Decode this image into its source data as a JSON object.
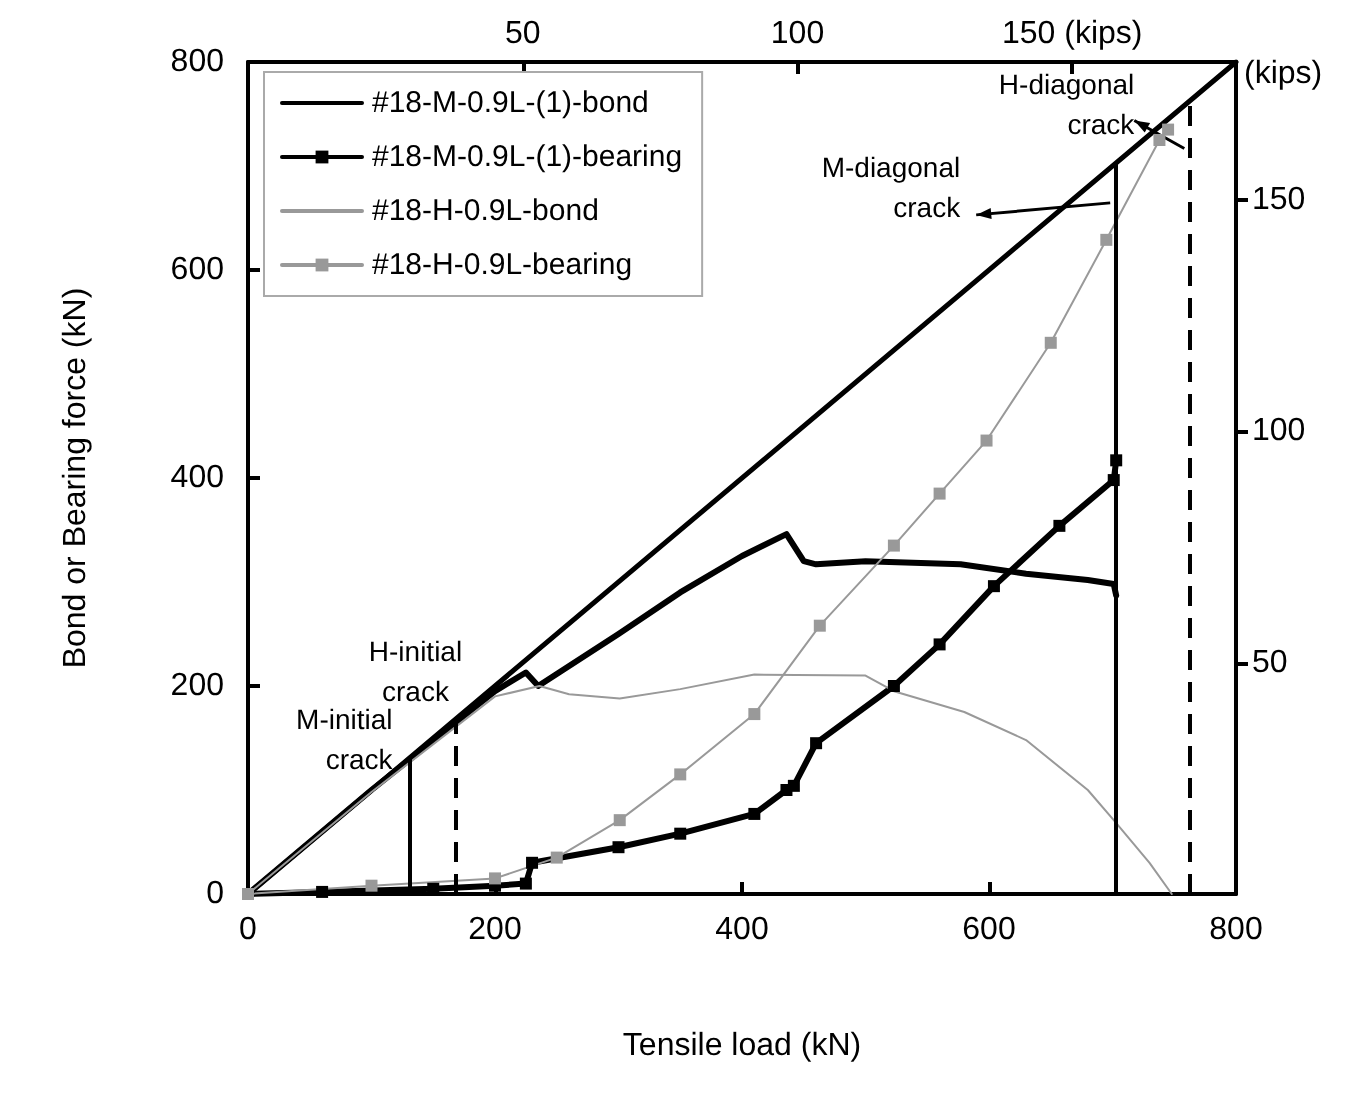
{
  "chart_data": {
    "type": "line",
    "xlabel": "Tensile load (kN)",
    "ylabel": "Bond or Bearing force (kN)",
    "y2label": "(kips)",
    "xlim": [
      0,
      800
    ],
    "xticks": [
      0,
      200,
      400,
      600,
      800
    ],
    "ylim": [
      0,
      800
    ],
    "yticks": [
      0,
      200,
      400,
      600,
      800
    ],
    "x2lim": [
      0,
      179.8
    ],
    "x2ticks": [
      50,
      100,
      {
        "value": 150,
        "label": "150 (kips)"
      }
    ],
    "y2lim": [
      0,
      179.8
    ],
    "y2ticks": [
      50,
      100,
      150
    ],
    "grid": false,
    "legend": "top left",
    "series": [
      {
        "name": "#18-M-0.9L-(1)-bond",
        "color": "#000000",
        "marker": "none",
        "x": [
          0,
          100,
          200,
          225,
          235,
          300,
          350,
          400,
          436,
          450,
          460,
          500,
          577,
          630,
          680,
          701,
          703
        ],
        "values": [
          0,
          100,
          195,
          213,
          200,
          250,
          290,
          325,
          346,
          320,
          317,
          320,
          317,
          308,
          302,
          298,
          287
        ]
      },
      {
        "name": "#18-M-0.9L-(1)-bearing",
        "color": "#000000",
        "marker": "square",
        "x": [
          0,
          60,
          150,
          200,
          225,
          230,
          300,
          350,
          410,
          436,
          442,
          460,
          523,
          560,
          604,
          657,
          701,
          703
        ],
        "values": [
          0,
          2,
          5,
          8,
          10,
          30,
          45,
          58,
          77,
          100,
          104,
          145,
          200,
          240,
          296,
          354,
          398,
          417
        ]
      },
      {
        "name": "#18-H-0.9L-bond",
        "color": "#999999",
        "marker": "none",
        "x": [
          0,
          100,
          200,
          236,
          260,
          301,
          350,
          410,
          500,
          523,
          580,
          630,
          680,
          701,
          730,
          748
        ],
        "values": [
          0,
          98,
          190,
          200,
          192,
          188,
          197,
          211,
          210,
          195,
          175,
          148,
          100,
          71,
          30,
          0
        ]
      },
      {
        "name": "#18-H-0.9L-bearing",
        "color": "#999999",
        "marker": "square",
        "x": [
          0,
          100,
          200,
          250,
          301,
          350,
          410,
          463,
          523,
          560,
          598,
          650,
          695,
          738,
          745
        ],
        "values": [
          0,
          8,
          15,
          35,
          71,
          115,
          173,
          258,
          335,
          385,
          436,
          530,
          629,
          725,
          735
        ]
      },
      {
        "color": "#000000",
        "marker": "none",
        "x": [
          0,
          800
        ],
        "values": [
          0,
          800
        ]
      }
    ],
    "ref_lines": [
      {
        "axis": "x",
        "value": 130,
        "label": "M-initial crack",
        "color": "#000000",
        "line_style": "solid"
      },
      {
        "axis": "x",
        "value": 168,
        "label": "H-initial crack",
        "color": "#000000",
        "line_style": "dashed"
      },
      {
        "axis": "x",
        "value": 703,
        "label": "M-diagonal crack",
        "color": "#000000",
        "line_style": "solid"
      },
      {
        "axis": "x",
        "value": 763,
        "label": "H-diagonal crack",
        "color": "#000000",
        "line_style": "dashed"
      }
    ]
  }
}
